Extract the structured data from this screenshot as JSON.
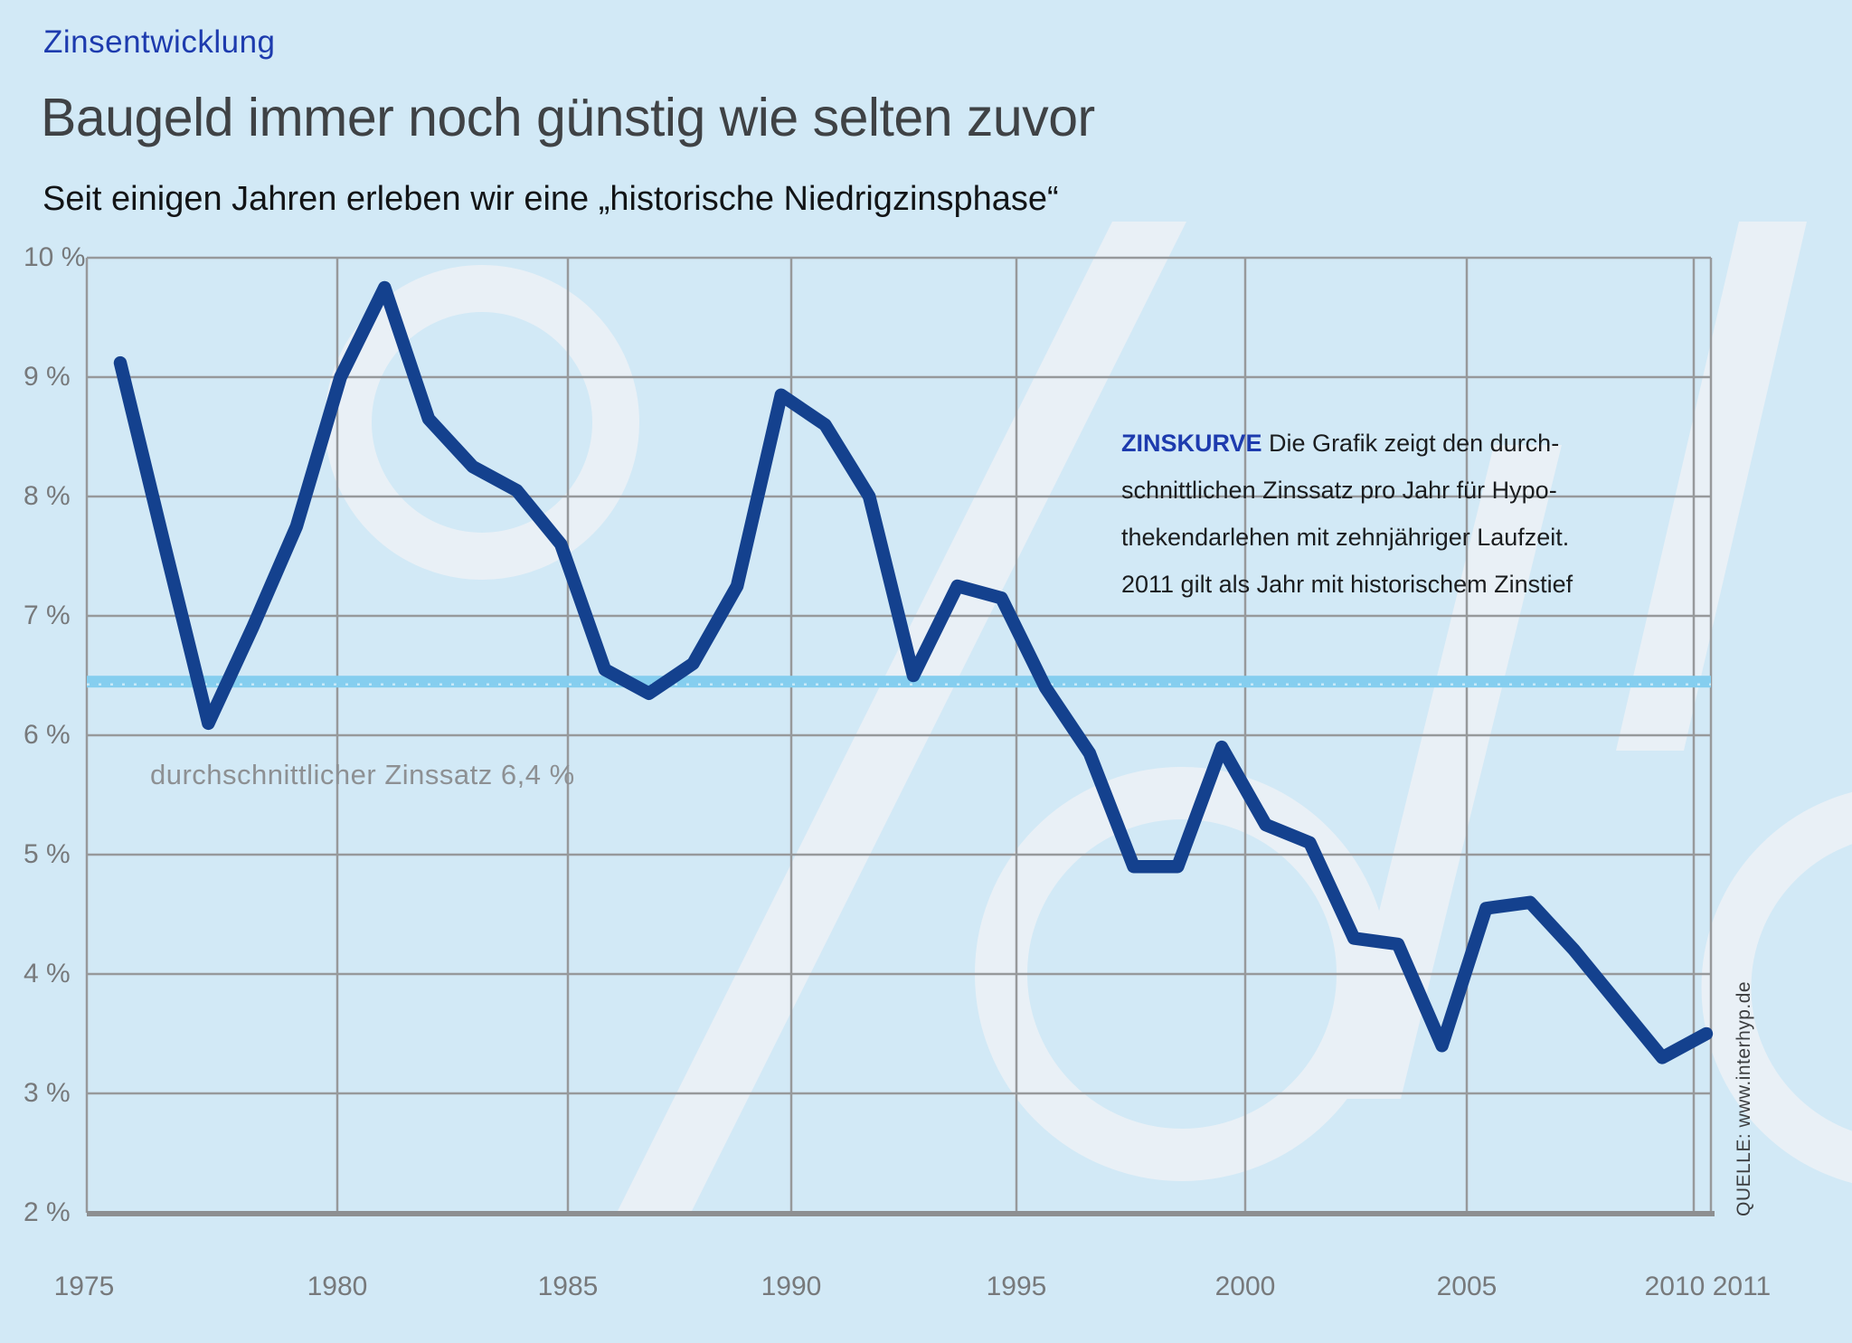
{
  "header": {
    "kicker": "Zinsentwicklung",
    "title": "Baugeld immer noch günstig wie selten zuvor",
    "subtitle": "Seit einigen Jahren erleben wir eine „historische Niedrigzinsphase“"
  },
  "chart_data": {
    "type": "line",
    "title": "Zinsentwicklung 1975–2011",
    "x": [
      1975,
      1976,
      1977,
      1978,
      1979,
      1980,
      1981,
      1982,
      1983,
      1984,
      1985,
      1986,
      1987,
      1988,
      1989,
      1990,
      1991,
      1992,
      1993,
      1994,
      1995,
      1996,
      1997,
      1998,
      1999,
      2000,
      2001,
      2002,
      2003,
      2004,
      2005,
      2006,
      2007,
      2008,
      2009,
      2010,
      2011
    ],
    "series": [
      {
        "name": "Durchschnittlicher Zinssatz pro Jahr für Hypothekendarlehen mit zehnjähriger Laufzeit",
        "unit": "%",
        "values": [
          9.12,
          7.6,
          6.1,
          6.9,
          7.75,
          9.0,
          9.75,
          8.65,
          8.25,
          8.05,
          7.6,
          6.55,
          6.35,
          6.6,
          7.25,
          8.85,
          8.6,
          8.0,
          6.5,
          7.25,
          7.15,
          6.4,
          5.85,
          4.9,
          4.9,
          5.9,
          5.25,
          5.1,
          4.3,
          4.25,
          3.4,
          4.55,
          4.6,
          4.2,
          3.75,
          3.3,
          3.5
        ]
      }
    ],
    "average_line": {
      "value": 6.4,
      "label": "durchschnittlicher Zinssatz 6,4 %"
    },
    "ylim": [
      2,
      10
    ],
    "xlim": [
      1975,
      2011
    ],
    "grid": true,
    "legend_position": "none",
    "y_ticks": [
      "10 %",
      "9 %",
      "8 %",
      "7 %",
      "6 %",
      "5 %",
      "4 %",
      "3 %",
      "2 %"
    ],
    "x_ticks": [
      "1975",
      "1980",
      "1985",
      "1990",
      "1995",
      "2000",
      "2005",
      "2010",
      "2011"
    ]
  },
  "annotation": {
    "label": "ZINSKURVE",
    "lines": [
      "Die Grafik zeigt den durch-",
      "schnittlichen Zinssatz pro Jahr für Hypo-",
      "thekendarlehen mit zehnjähriger Laufzeit.",
      "2011 gilt als Jahr mit historischem Zinstief"
    ]
  },
  "source": "QUELLE: www.interhyp.de",
  "colors": {
    "background": "#d2e9f6",
    "curve": "#14418e",
    "accent_blue": "#1d3bae",
    "average_band": "#85ceef",
    "grid": "#97999b",
    "axis_text": "#77797b",
    "watermark": "#e9f0f6"
  }
}
